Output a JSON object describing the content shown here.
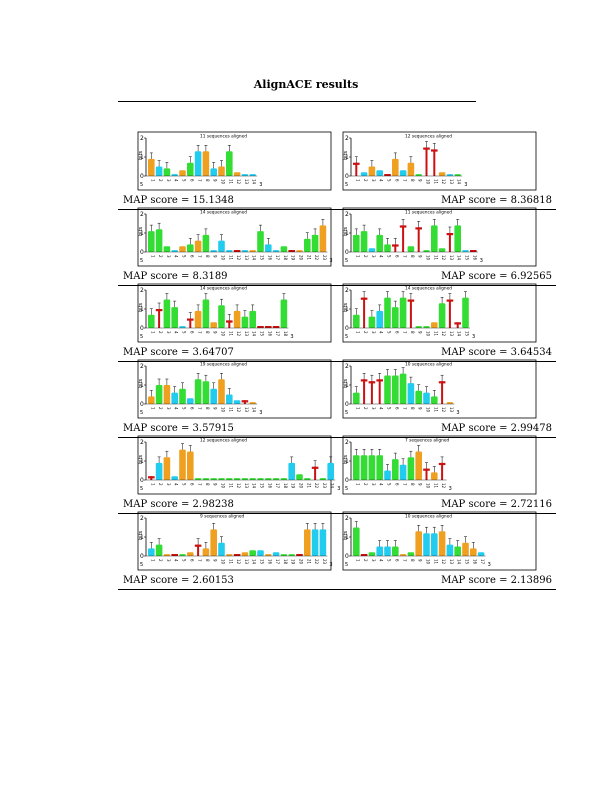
{
  "page_title": "AlignACE results",
  "colors": {
    "A": "#33dd33",
    "C": "#22ccee",
    "G": "#f0a020",
    "T": "#cc1111"
  },
  "y_ticks": [
    "0",
    "1",
    "2"
  ],
  "y_label": "bits",
  "end5": "5",
  "end3": "3",
  "rows": [
    {
      "left_score": "MAP score = 15.1348",
      "right_score": "MAP score = 8.36818"
    },
    {
      "left_score": "MAP score = 8.3189",
      "right_score": "MAP score = 6.92565"
    },
    {
      "left_score": "MAP score = 3.64707",
      "right_score": "MAP score = 3.64534"
    },
    {
      "left_score": "MAP score = 3.57915",
      "right_score": "MAP score = 2.99478"
    },
    {
      "left_score": "MAP score = 2.98238",
      "right_score": "MAP score = 2.72116"
    },
    {
      "left_score": "MAP score = 2.60153",
      "right_score": "MAP score = 2.13896"
    }
  ],
  "logos": [
    {
      "caption": "11 sequences aligned",
      "columns": [
        "G",
        "C",
        "A",
        "C",
        "G",
        "A",
        "C",
        "G",
        "C",
        "G",
        "A",
        "G",
        "C",
        "C"
      ],
      "heights": [
        0.9,
        0.5,
        0.4,
        0.1,
        0.3,
        0.7,
        1.3,
        1.3,
        0.4,
        0.5,
        1.3,
        0.2,
        0.1,
        0.1
      ]
    },
    {
      "caption": "12 sequences aligned",
      "columns": [
        "T",
        "C",
        "G",
        "C",
        "T",
        "G",
        "C",
        "G",
        "A",
        "T",
        "T",
        "G",
        "C",
        "A"
      ],
      "heights": [
        0.7,
        0.2,
        0.5,
        0.3,
        0.1,
        0.9,
        0.3,
        0.7,
        0.1,
        1.5,
        1.4,
        0.2,
        0.1,
        0.1
      ]
    },
    {
      "caption": "14 sequences aligned",
      "columns": [
        "A",
        "A",
        "A",
        "C",
        "G",
        "A",
        "G",
        "A",
        "C",
        "C",
        "C",
        "T",
        "C",
        "G",
        "A",
        "C",
        "C",
        "A",
        "T",
        "G",
        "A",
        "A",
        "G"
      ],
      "heights": [
        1.1,
        1.2,
        0.3,
        0.1,
        0.3,
        0.4,
        0.6,
        0.9,
        0.1,
        0.6,
        0.1,
        0.1,
        0.1,
        0.1,
        1.1,
        0.4,
        0.1,
        0.3,
        0.1,
        0.1,
        0.7,
        0.9,
        1.4
      ]
    },
    {
      "caption": "11 sequences aligned",
      "columns": [
        "A",
        "A",
        "C",
        "A",
        "A",
        "T",
        "T",
        "A",
        "T",
        "A",
        "A",
        "A",
        "T",
        "A",
        "C",
        "T"
      ],
      "heights": [
        0.9,
        1.1,
        0.2,
        0.9,
        0.4,
        0.4,
        1.4,
        0.3,
        1.3,
        0.1,
        1.4,
        0.2,
        1.0,
        1.4,
        0.1,
        0.1
      ]
    },
    {
      "caption": "14 sequences aligned",
      "columns": [
        "A",
        "T",
        "A",
        "A",
        "C",
        "T",
        "G",
        "A",
        "G",
        "A",
        "T",
        "G",
        "A",
        "A",
        "T",
        "T",
        "T",
        "A"
      ],
      "heights": [
        0.7,
        1.0,
        1.5,
        1.1,
        0.1,
        0.5,
        0.9,
        1.5,
        0.3,
        1.2,
        0.4,
        0.9,
        0.6,
        0.9,
        0.1,
        0.1,
        0.1,
        1.5
      ]
    },
    {
      "caption": "14 sequences aligned",
      "columns": [
        "A",
        "T",
        "A",
        "C",
        "A",
        "A",
        "A",
        "T",
        "A",
        "A",
        "G",
        "A",
        "T",
        "T",
        "A"
      ],
      "heights": [
        0.7,
        1.6,
        0.6,
        0.9,
        1.6,
        1.1,
        1.6,
        1.5,
        0.1,
        0.1,
        0.3,
        1.3,
        1.5,
        0.3,
        1.6
      ]
    },
    {
      "caption": "19 sequences aligned",
      "columns": [
        "G",
        "A",
        "G",
        "C",
        "A",
        "C",
        "A",
        "A",
        "C",
        "G",
        "C",
        "C",
        "T",
        "G"
      ],
      "heights": [
        0.4,
        1.0,
        1.0,
        0.6,
        0.8,
        0.3,
        1.3,
        1.2,
        0.8,
        1.3,
        0.5,
        0.2,
        0.2,
        0.1
      ]
    },
    {
      "caption": "10 sequences aligned",
      "columns": [
        "A",
        "T",
        "T",
        "T",
        "A",
        "A",
        "A",
        "C",
        "A",
        "C",
        "A",
        "T",
        "G"
      ],
      "heights": [
        0.6,
        1.3,
        1.2,
        1.3,
        1.5,
        1.5,
        1.6,
        1.1,
        0.7,
        0.6,
        0.4,
        1.2,
        0.1
      ]
    },
    {
      "caption": "12 sequences aligned",
      "columns": [
        "T",
        "C",
        "G",
        "C",
        "G",
        "G",
        "A",
        "A",
        "A",
        "A",
        "A",
        "A",
        "A",
        "A",
        "A",
        "A",
        "A",
        "A",
        "C",
        "A",
        "A",
        "T",
        "A",
        "C"
      ],
      "heights": [
        0.2,
        0.9,
        1.2,
        0.2,
        1.6,
        1.5,
        0.1,
        0.1,
        0.1,
        0.1,
        0.1,
        0.1,
        0.1,
        0.1,
        0.1,
        0.1,
        0.1,
        0.1,
        0.9,
        0.3,
        0.1,
        0.7,
        0.1,
        0.9
      ]
    },
    {
      "caption": "7 sequences aligned",
      "columns": [
        "A",
        "A",
        "A",
        "A",
        "C",
        "A",
        "C",
        "A",
        "G",
        "T",
        "G",
        "T"
      ],
      "heights": [
        1.3,
        1.3,
        1.3,
        1.3,
        0.5,
        1.1,
        0.8,
        1.2,
        1.5,
        0.6,
        0.4,
        0.9
      ]
    },
    {
      "caption": "9 sequences aligned",
      "columns": [
        "C",
        "A",
        "G",
        "T",
        "A",
        "G",
        "T",
        "G",
        "G",
        "C",
        "G",
        "T",
        "G",
        "A",
        "C",
        "G",
        "C",
        "A",
        "A",
        "T",
        "G",
        "C",
        "C"
      ],
      "heights": [
        0.4,
        0.6,
        0.1,
        0.1,
        0.1,
        0.2,
        0.6,
        0.4,
        1.4,
        0.7,
        0.1,
        0.1,
        0.2,
        0.3,
        0.3,
        0.1,
        0.2,
        0.1,
        0.1,
        0.1,
        1.4,
        1.4,
        1.4
      ]
    },
    {
      "caption": "10 sequences aligned",
      "columns": [
        "A",
        "T",
        "A",
        "C",
        "C",
        "A",
        "G",
        "A",
        "G",
        "C",
        "C",
        "G",
        "C",
        "A",
        "G",
        "G",
        "C"
      ],
      "heights": [
        1.5,
        0.1,
        0.2,
        0.5,
        0.5,
        0.5,
        0.1,
        0.2,
        1.3,
        1.2,
        1.2,
        1.3,
        0.6,
        0.5,
        0.7,
        0.4,
        0.2
      ]
    }
  ]
}
